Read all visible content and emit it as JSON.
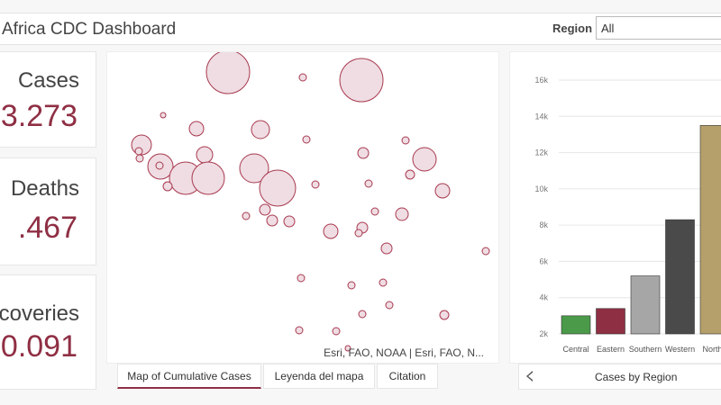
{
  "header": {
    "title": "Africa CDC Dashboard",
    "region_label": "Region",
    "region_value": "All"
  },
  "kpis": {
    "cases": {
      "label": "Cases",
      "value": "3.273"
    },
    "deaths": {
      "label": "Deaths",
      "value": ".467"
    },
    "recoveries": {
      "label": "coveries",
      "value": "0.091"
    }
  },
  "map": {
    "attribution": "Esri, FAO, NOAA | Esri, FAO, N...",
    "marker_color": "#a8394f",
    "marker_fill": "#efdde3"
  },
  "tabs": [
    {
      "label": "Map of Cumulative Cases"
    },
    {
      "label": "Leyenda del mapa"
    },
    {
      "label": "Citation"
    }
  ],
  "chart_panel": {
    "caption": "Cases by Region"
  },
  "chart_data": {
    "type": "bar",
    "title": "Cases by Region",
    "categories": [
      "Central",
      "Eastern",
      "Southern",
      "Western",
      "Northe"
    ],
    "values": [
      3000,
      3400,
      5200,
      8300,
      13500
    ],
    "colors": [
      "#4a9a4a",
      "#8f2f44",
      "#a6a6a6",
      "#4a4a4a",
      "#b5a06b"
    ],
    "yticks": [
      "2k",
      "4k",
      "6k",
      "8k",
      "10k",
      "12k",
      "14k",
      "16k"
    ],
    "ylim": [
      2000,
      16000
    ],
    "grid": true
  }
}
